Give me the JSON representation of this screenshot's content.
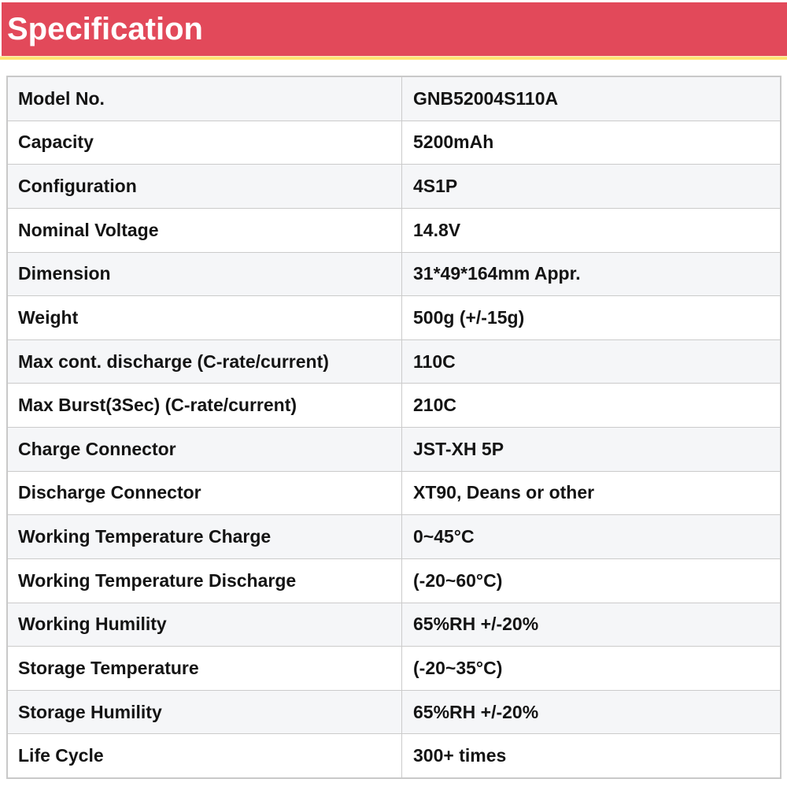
{
  "header": {
    "title": "Specification"
  },
  "colors": {
    "header_bg": "#e2495a",
    "header_underline": "#ffe16d",
    "row_alt_bg": "#f5f6f8",
    "border": "#cbcbcb",
    "header_text": "#ffffff",
    "cell_text": "#141414"
  },
  "table": {
    "rows": [
      {
        "label": "Model No.",
        "value": "GNB52004S110A"
      },
      {
        "label": "Capacity",
        "value": "5200mAh"
      },
      {
        "label": "Configuration",
        "value": "4S1P"
      },
      {
        "label": "Nominal Voltage",
        "value": "14.8V"
      },
      {
        "label": "Dimension",
        "value": "31*49*164mm Appr."
      },
      {
        "label": "Weight",
        "value": "500g (+/-15g)"
      },
      {
        "label": "Max cont. discharge (C-rate/current)",
        "value": "110C"
      },
      {
        "label": "Max Burst(3Sec) (C-rate/current)",
        "value": "210C"
      },
      {
        "label": "Charge Connector",
        "value": "JST-XH 5P"
      },
      {
        "label": "Discharge Connector",
        "value": "XT90, Deans or other"
      },
      {
        "label": "Working Temperature Charge",
        "value": "0~45°C"
      },
      {
        "label": "Working Temperature Discharge",
        "value": "(-20~60°C)"
      },
      {
        "label": "Working Humility",
        "value": "65%RH +/-20%"
      },
      {
        "label": "Storage Temperature",
        "value": "(-20~35°C)"
      },
      {
        "label": "Storage Humility",
        "value": "65%RH +/-20%"
      },
      {
        "label": "Life Cycle",
        "value": "300+ times"
      }
    ]
  }
}
